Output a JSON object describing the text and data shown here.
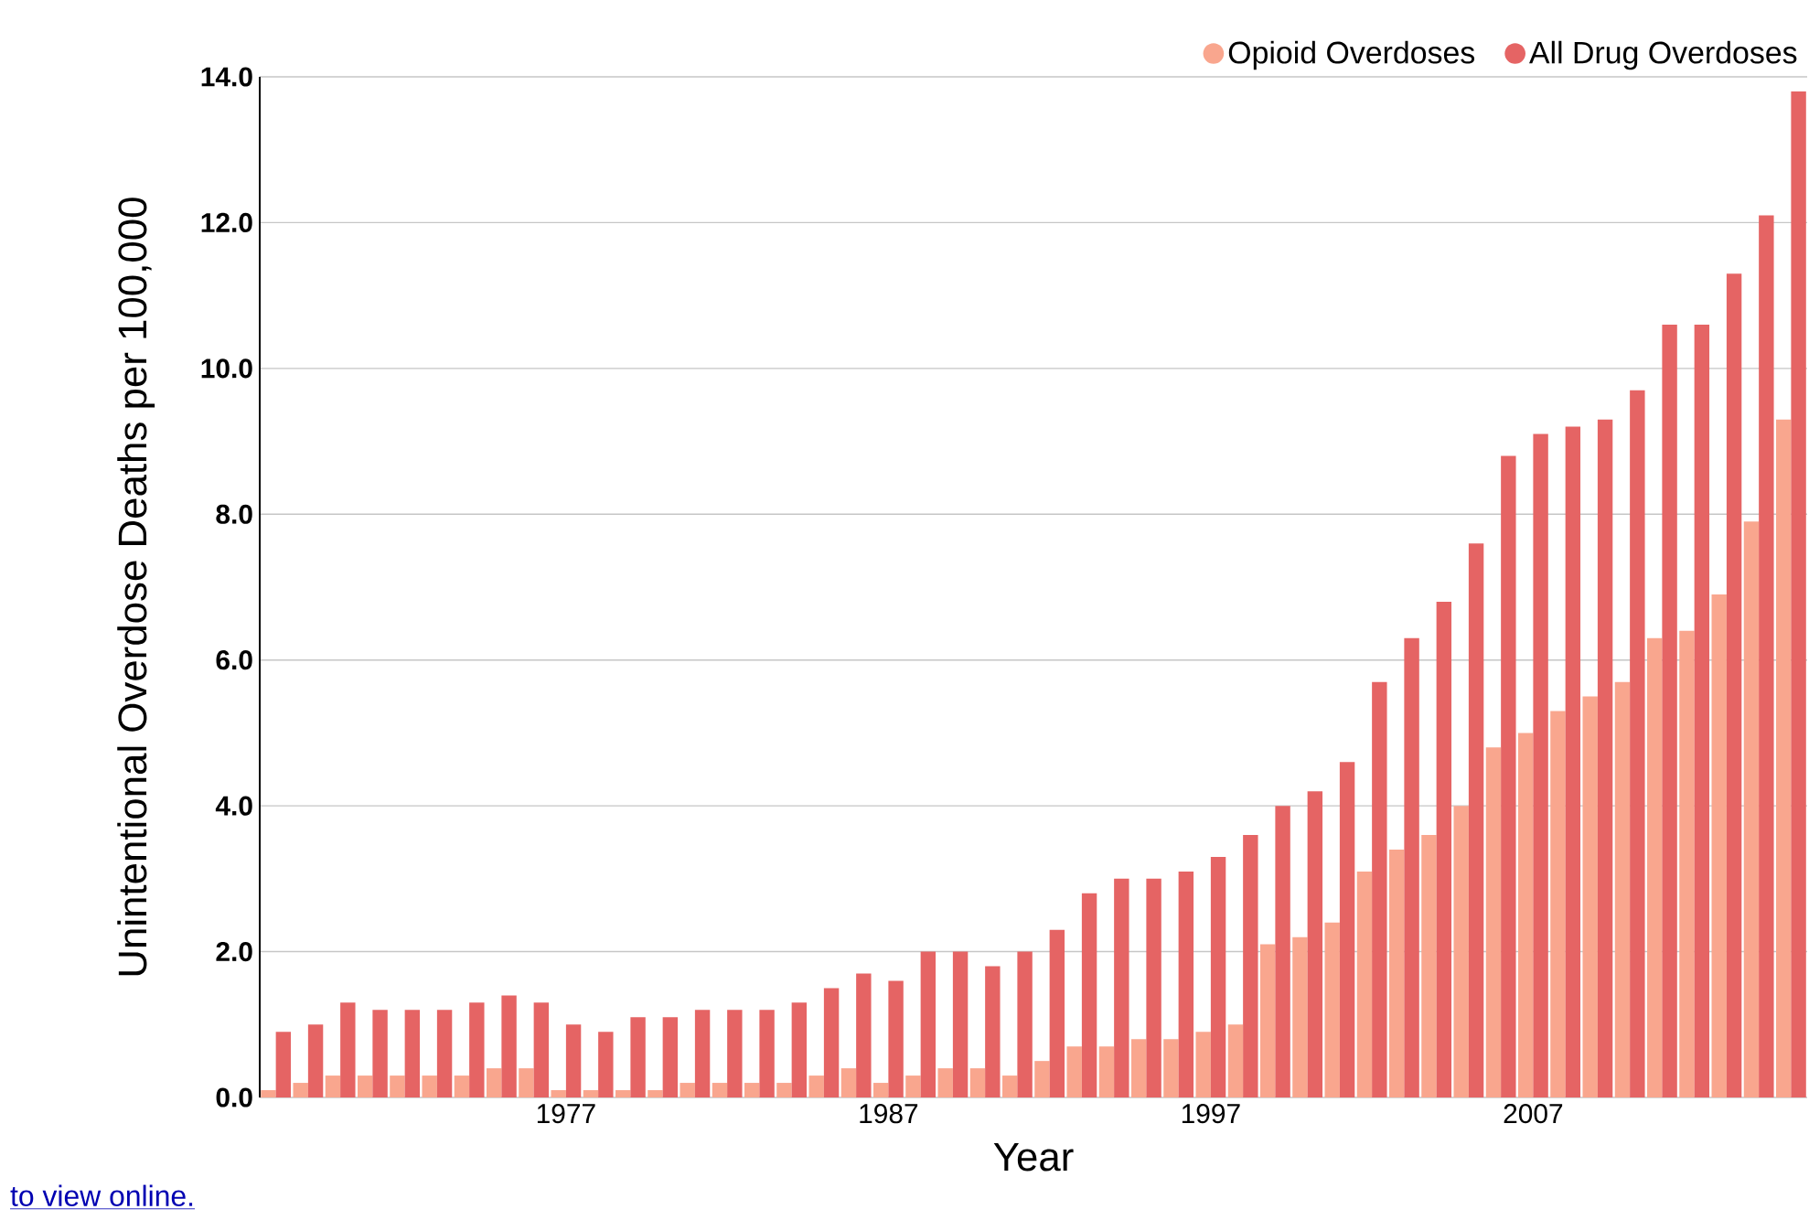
{
  "chart_data": {
    "type": "bar",
    "xlabel": "Year",
    "ylabel": "Unintentional Overdose Deaths per 100,000",
    "x": [
      1968,
      1969,
      1970,
      1971,
      1972,
      1973,
      1974,
      1975,
      1976,
      1977,
      1978,
      1979,
      1980,
      1981,
      1982,
      1983,
      1984,
      1985,
      1986,
      1987,
      1988,
      1989,
      1990,
      1991,
      1992,
      1993,
      1994,
      1995,
      1996,
      1997,
      1998,
      1999,
      2000,
      2001,
      2002,
      2003,
      2004,
      2005,
      2006,
      2007,
      2008,
      2009,
      2010,
      2011,
      2012,
      2013,
      2014,
      2015
    ],
    "series": [
      {
        "name": "Opioid Overdoses",
        "color": "#f9a68e",
        "values": [
          0.1,
          0.2,
          0.3,
          0.3,
          0.3,
          0.3,
          0.3,
          0.4,
          0.4,
          0.1,
          0.1,
          0.1,
          0.1,
          0.2,
          0.2,
          0.2,
          0.2,
          0.3,
          0.4,
          0.2,
          0.3,
          0.4,
          0.4,
          0.3,
          0.5,
          0.7,
          0.7,
          0.8,
          0.8,
          0.9,
          1.0,
          2.1,
          2.2,
          2.4,
          3.1,
          3.4,
          3.6,
          4.0,
          4.8,
          5.0,
          5.3,
          5.5,
          5.7,
          6.3,
          6.4,
          6.9,
          7.9,
          9.3
        ]
      },
      {
        "name": "All Drug Overdoses",
        "color": "#e56464",
        "values": [
          0.9,
          1.0,
          1.3,
          1.2,
          1.2,
          1.2,
          1.3,
          1.4,
          1.3,
          1.0,
          0.9,
          1.1,
          1.1,
          1.2,
          1.2,
          1.2,
          1.3,
          1.5,
          1.7,
          1.6,
          2.0,
          2.0,
          1.8,
          2.0,
          2.3,
          2.8,
          3.0,
          3.0,
          3.1,
          3.3,
          3.6,
          4.0,
          4.2,
          4.6,
          5.7,
          6.3,
          6.8,
          7.6,
          8.8,
          9.1,
          9.2,
          9.3,
          9.7,
          10.6,
          10.6,
          11.3,
          12.1,
          13.8
        ]
      }
    ],
    "xlim": [
      1967.5,
      2015.5
    ],
    "xticks": [
      1977,
      1987,
      1997,
      2007
    ],
    "ylim": [
      0,
      14
    ],
    "yticks": [
      {
        "value": 0,
        "label": "0.0"
      },
      {
        "value": 2,
        "label": "2.0"
      },
      {
        "value": 4,
        "label": "4.0"
      },
      {
        "value": 6,
        "label": "6.0"
      },
      {
        "value": 8,
        "label": "8.0"
      },
      {
        "value": 10,
        "label": "10.0"
      },
      {
        "value": 12,
        "label": "12.0"
      },
      {
        "value": 14,
        "label": "14.0"
      }
    ],
    "grid": "y",
    "legend": "top right",
    "annotations": [
      "to view online."
    ]
  }
}
